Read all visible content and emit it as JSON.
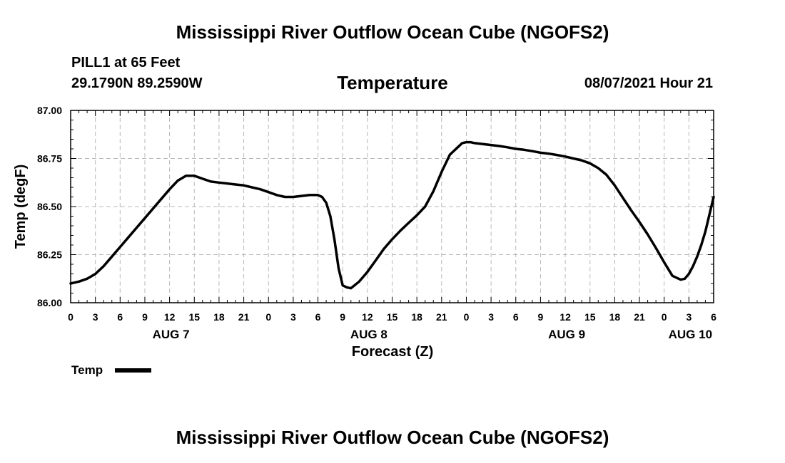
{
  "header": {
    "title": "Mississippi River Outflow Ocean Cube (NGOFS2)",
    "station": "PILL1 at 65 Feet",
    "coords": "29.1790N  89.2590W",
    "variable": "Temperature",
    "datetime": "08/07/2021 Hour 21"
  },
  "footer": {
    "title": "Mississippi River Outflow Ocean Cube (NGOFS2)"
  },
  "chart_data": {
    "type": "line",
    "title": "Temperature",
    "xlabel": "Forecast (Z)",
    "ylabel": "Temp (degF)",
    "xlim": [
      0,
      78
    ],
    "ylim": [
      86.0,
      87.0
    ],
    "y_ticks": [
      "86.00",
      "86.25",
      "86.50",
      "86.75",
      "87.00"
    ],
    "y_tick_values": [
      86.0,
      86.25,
      86.5,
      86.75,
      87.0
    ],
    "x_tick_labels": [
      "0",
      "3",
      "6",
      "9",
      "12",
      "15",
      "18",
      "21",
      "0",
      "3",
      "6",
      "9",
      "12",
      "15",
      "18",
      "21",
      "0",
      "3",
      "6",
      "9",
      "12",
      "15",
      "18",
      "21",
      "0",
      "3",
      "6"
    ],
    "date_labels": [
      {
        "label": "AUG 7",
        "hour": 12
      },
      {
        "label": "AUG 8",
        "hour": 36
      },
      {
        "label": "AUG 9",
        "hour": 60
      },
      {
        "label": "AUG 10",
        "hour": 75
      }
    ],
    "grid": true,
    "legend": {
      "label": "Temp",
      "position": "bottom-left"
    },
    "series": [
      {
        "name": "Temp",
        "x": [
          0,
          1,
          2,
          3,
          4,
          5,
          6,
          7,
          8,
          9,
          10,
          11,
          12,
          13,
          14,
          15,
          16,
          17,
          18,
          19,
          20,
          21,
          22,
          23,
          24,
          25,
          26,
          27,
          28,
          29,
          30,
          30.5,
          31,
          31.5,
          32,
          32.5,
          33,
          33.5,
          34,
          35,
          36,
          37,
          38,
          39,
          40,
          41,
          42,
          43,
          44,
          45,
          46,
          47,
          47.5,
          48,
          48.5,
          49,
          50,
          51,
          52,
          53,
          54,
          55,
          56,
          57,
          58,
          59,
          60,
          61,
          62,
          63,
          64,
          65,
          66,
          67,
          68,
          69,
          70,
          71,
          72,
          72.5,
          73,
          73.5,
          74,
          74.5,
          75,
          75.5,
          76,
          76.5,
          77,
          77.5,
          78
        ],
        "values": [
          86.1,
          86.11,
          86.125,
          86.15,
          86.19,
          86.24,
          86.29,
          86.34,
          86.39,
          86.44,
          86.49,
          86.54,
          86.59,
          86.635,
          86.66,
          86.66,
          86.645,
          86.63,
          86.625,
          86.62,
          86.615,
          86.61,
          86.6,
          86.59,
          86.575,
          86.56,
          86.55,
          86.55,
          86.555,
          86.56,
          86.56,
          86.55,
          86.52,
          86.45,
          86.33,
          86.18,
          86.09,
          86.08,
          86.075,
          86.11,
          86.16,
          86.22,
          86.28,
          86.33,
          86.375,
          86.415,
          86.455,
          86.5,
          86.58,
          86.68,
          86.77,
          86.81,
          86.83,
          86.835,
          86.835,
          86.83,
          86.825,
          86.82,
          86.815,
          86.808,
          86.8,
          86.795,
          86.788,
          86.78,
          86.775,
          86.768,
          86.76,
          86.75,
          86.74,
          86.725,
          86.7,
          86.665,
          86.61,
          86.545,
          86.48,
          86.42,
          86.355,
          86.285,
          86.21,
          86.175,
          86.14,
          86.13,
          86.12,
          86.125,
          86.15,
          86.19,
          86.24,
          86.3,
          86.37,
          86.46,
          86.55
        ]
      }
    ]
  }
}
